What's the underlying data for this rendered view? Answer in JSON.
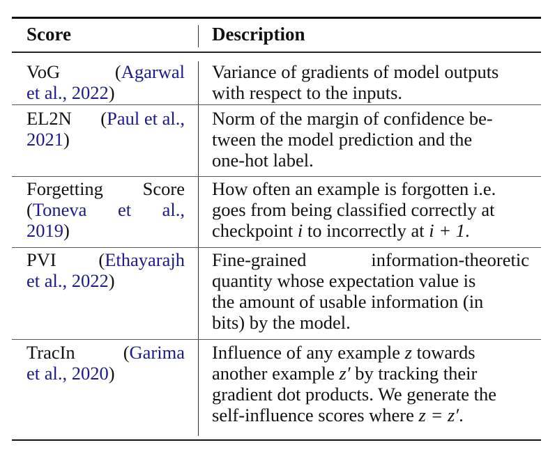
{
  "table": {
    "headers": {
      "score": "Score",
      "description": "Description"
    },
    "rows": [
      {
        "score": {
          "name": "VoG",
          "open": "(",
          "cite_a": "Agarwal",
          "cite_b": "et al., 2022",
          "close": ")"
        },
        "description": [
          "Variance of gradients of model outputs",
          "with respect to the inputs."
        ]
      },
      {
        "score": {
          "name": "EL2N",
          "open": "(",
          "cite_a": "Paul et al.,",
          "cite_b": "2021",
          "close": ")"
        },
        "description": [
          "Norm of the margin of confidence be-",
          "tween the model prediction and the",
          "one-hot label."
        ]
      },
      {
        "score": {
          "name_a": "Forgetting",
          "name_b": "Score",
          "open": "(",
          "cite_a1": "Toneva",
          "cite_a2": "et",
          "cite_a3": "al.,",
          "cite_b": "2019",
          "close": ")"
        },
        "description": [
          "How often an example is forgotten i.e.",
          "goes from being classified correctly at",
          "checkpoint",
          "i",
          "to incorrectly at",
          "i + 1",
          "."
        ]
      },
      {
        "score": {
          "name": "PVI",
          "open": "(",
          "cite_a": "Ethayarajh",
          "cite_b": "et al., 2022",
          "close": ")"
        },
        "description": [
          "Fine-grained",
          "information-theoretic",
          "quantity whose expectation value is",
          "the amount of usable information (in",
          "bits) by the model."
        ]
      },
      {
        "score": {
          "name": "TracIn",
          "open": "(",
          "cite_a": "Garima",
          "cite_b": "et al., 2020",
          "close": ")"
        },
        "description": [
          "Influence of any example",
          "z",
          "towards",
          "another example",
          "z′",
          "by tracking their",
          "gradient dot products. We generate the",
          "self-influence scores where",
          "z = z′",
          "."
        ]
      }
    ]
  }
}
